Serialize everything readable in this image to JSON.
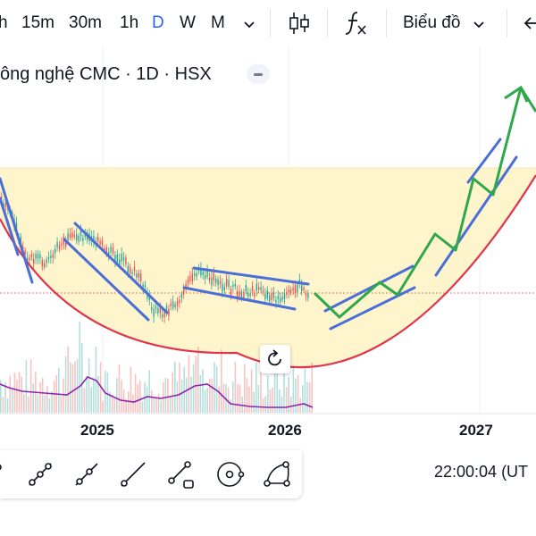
{
  "toolbar": {
    "intervals": [
      {
        "label": "h",
        "active": false
      },
      {
        "label": "15m",
        "active": false
      },
      {
        "label": "30m",
        "active": false
      },
      {
        "label": "1h",
        "active": false
      },
      {
        "label": "D",
        "active": true
      },
      {
        "label": "W",
        "active": false
      },
      {
        "label": "M",
        "active": false
      }
    ],
    "chart_type_label": "Biểu đồ",
    "icons": [
      "chevron-down-icon",
      "candlestick-icon",
      "indicators-fx-icon",
      "chevron-down-icon",
      "undo-icon"
    ]
  },
  "symbol": {
    "title": "ông nghệ CMC · 1D · HSX"
  },
  "time_axis": {
    "labels": [
      "2025",
      "2026",
      "2027"
    ]
  },
  "bottom_tools": {
    "icons": [
      "trend-line-tool-icon",
      "info-line-tool-icon",
      "ray-tool-icon",
      "extended-line-tool-icon",
      "trend-angle-tool-icon",
      "circle-tool-icon",
      "arc-tool-icon"
    ]
  },
  "clock": "22:00:04 (UT",
  "colors": {
    "accent": "#2962ff",
    "up": "#26a69a",
    "down": "#ef5350",
    "channel": "#4a6fd6",
    "projection": "#2ea84a",
    "cup": "#e0354c",
    "zone": "#fff5cc",
    "volume_ma": "#8e24aa"
  }
}
